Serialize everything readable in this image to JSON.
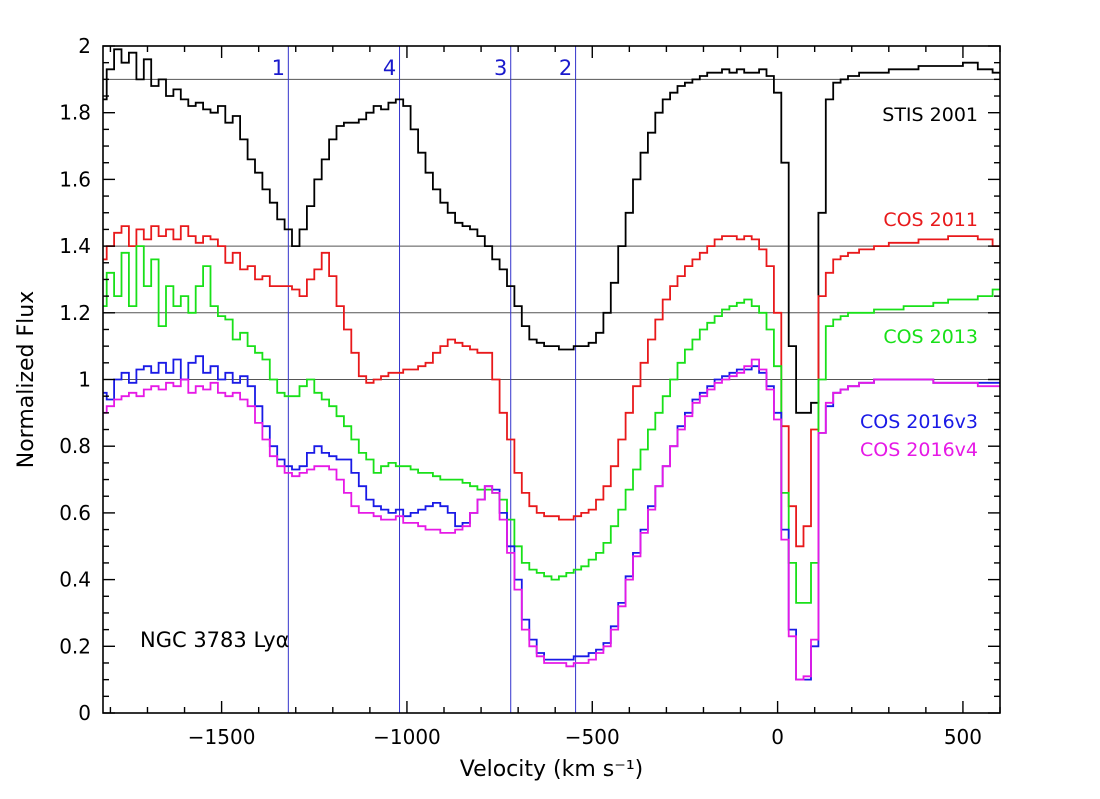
{
  "chart_data": {
    "type": "line",
    "object_label": "NGC 3783 Lyα",
    "xlabel": "Velocity (km s⁻¹)",
    "ylabel": "Normalized Flux",
    "xlim": [
      -1820,
      600
    ],
    "ylim": [
      0,
      2
    ],
    "x_ticks": [
      -1500,
      -1000,
      -500,
      0,
      500
    ],
    "x_tick_labels": [
      "−1500",
      "−1000",
      "−500",
      "0",
      "500"
    ],
    "y_ticks": [
      0,
      0.2,
      0.4,
      0.6,
      0.8,
      1,
      1.2,
      1.4,
      1.6,
      1.8,
      2
    ],
    "y_tick_labels": [
      "0",
      "0.2",
      "0.4",
      "0.6",
      "0.8",
      "1",
      "1.2",
      "1.4",
      "1.6",
      "1.8",
      "2"
    ],
    "grid": "none",
    "reference_lines": [
      1.0,
      1.2,
      1.4,
      1.9
    ],
    "component_lines": [
      {
        "label": "1",
        "x": -1320
      },
      {
        "label": "4",
        "x": -1020
      },
      {
        "label": "3",
        "x": -720
      },
      {
        "label": "2",
        "x": -545
      }
    ],
    "colors": {
      "axis": "#000000",
      "reference_line": "#555555",
      "component_line": "#3333cc",
      "component_label": "#1a1acc"
    },
    "series": [
      {
        "name": "STIS 2001",
        "color": "#000000",
        "x": [
          -1820,
          -1800,
          -1780,
          -1760,
          -1740,
          -1720,
          -1700,
          -1680,
          -1660,
          -1640,
          -1620,
          -1600,
          -1580,
          -1560,
          -1540,
          -1520,
          -1500,
          -1480,
          -1460,
          -1440,
          -1420,
          -1400,
          -1380,
          -1360,
          -1340,
          -1320,
          -1300,
          -1280,
          -1260,
          -1240,
          -1220,
          -1200,
          -1180,
          -1160,
          -1140,
          -1120,
          -1100,
          -1080,
          -1060,
          -1040,
          -1020,
          -1000,
          -980,
          -960,
          -940,
          -920,
          -900,
          -880,
          -860,
          -840,
          -820,
          -800,
          -780,
          -760,
          -740,
          -720,
          -700,
          -680,
          -660,
          -640,
          -620,
          -600,
          -580,
          -560,
          -540,
          -520,
          -500,
          -480,
          -460,
          -440,
          -420,
          -400,
          -380,
          -360,
          -340,
          -320,
          -300,
          -280,
          -260,
          -240,
          -220,
          -200,
          -180,
          -160,
          -140,
          -120,
          -100,
          -80,
          -60,
          -40,
          -20,
          0,
          20,
          40,
          60,
          80,
          100,
          120,
          140,
          160,
          180,
          200,
          240,
          280,
          320,
          360,
          400,
          440,
          480,
          520,
          560,
          600
        ],
        "values": [
          1.84,
          1.93,
          1.99,
          1.95,
          1.98,
          1.9,
          1.96,
          1.88,
          1.9,
          1.85,
          1.87,
          1.84,
          1.82,
          1.83,
          1.81,
          1.8,
          1.82,
          1.77,
          1.79,
          1.72,
          1.66,
          1.62,
          1.57,
          1.53,
          1.48,
          1.45,
          1.4,
          1.45,
          1.52,
          1.6,
          1.66,
          1.72,
          1.76,
          1.77,
          1.77,
          1.78,
          1.8,
          1.82,
          1.81,
          1.83,
          1.84,
          1.82,
          1.75,
          1.68,
          1.62,
          1.57,
          1.53,
          1.5,
          1.47,
          1.46,
          1.45,
          1.43,
          1.4,
          1.36,
          1.33,
          1.28,
          1.22,
          1.16,
          1.12,
          1.11,
          1.1,
          1.1,
          1.09,
          1.09,
          1.1,
          1.1,
          1.11,
          1.14,
          1.2,
          1.29,
          1.4,
          1.5,
          1.6,
          1.68,
          1.74,
          1.8,
          1.84,
          1.86,
          1.88,
          1.89,
          1.9,
          1.91,
          1.92,
          1.92,
          1.93,
          1.92,
          1.93,
          1.92,
          1.92,
          1.93,
          1.91,
          1.86,
          1.65,
          1.1,
          0.9,
          0.9,
          0.93,
          1.5,
          1.84,
          1.89,
          1.9,
          1.91,
          1.92,
          1.92,
          1.93,
          1.93,
          1.94,
          1.94,
          1.94,
          1.95,
          1.93,
          1.92
        ]
      },
      {
        "name": "COS 2011",
        "color": "#e8191b",
        "x": [
          -1820,
          -1800,
          -1780,
          -1760,
          -1740,
          -1720,
          -1700,
          -1680,
          -1660,
          -1640,
          -1620,
          -1600,
          -1580,
          -1560,
          -1540,
          -1520,
          -1500,
          -1480,
          -1460,
          -1440,
          -1420,
          -1400,
          -1380,
          -1360,
          -1340,
          -1320,
          -1300,
          -1280,
          -1260,
          -1240,
          -1220,
          -1200,
          -1180,
          -1160,
          -1140,
          -1120,
          -1100,
          -1080,
          -1060,
          -1040,
          -1020,
          -1000,
          -980,
          -960,
          -940,
          -920,
          -900,
          -880,
          -860,
          -840,
          -820,
          -800,
          -780,
          -760,
          -740,
          -720,
          -700,
          -680,
          -660,
          -640,
          -620,
          -600,
          -580,
          -560,
          -540,
          -520,
          -500,
          -480,
          -460,
          -440,
          -420,
          -400,
          -380,
          -360,
          -340,
          -320,
          -300,
          -280,
          -260,
          -240,
          -220,
          -200,
          -180,
          -160,
          -140,
          -120,
          -100,
          -80,
          -60,
          -40,
          -20,
          0,
          20,
          40,
          60,
          80,
          100,
          120,
          140,
          160,
          180,
          200,
          240,
          280,
          320,
          360,
          400,
          440,
          480,
          520,
          560,
          600
        ],
        "values": [
          1.36,
          1.4,
          1.44,
          1.46,
          1.4,
          1.45,
          1.42,
          1.46,
          1.43,
          1.45,
          1.42,
          1.46,
          1.43,
          1.41,
          1.43,
          1.42,
          1.4,
          1.35,
          1.38,
          1.33,
          1.34,
          1.3,
          1.31,
          1.28,
          1.28,
          1.28,
          1.27,
          1.25,
          1.3,
          1.33,
          1.38,
          1.31,
          1.22,
          1.15,
          1.08,
          1.01,
          0.99,
          1.0,
          1.01,
          1.02,
          1.02,
          1.03,
          1.03,
          1.04,
          1.05,
          1.08,
          1.1,
          1.12,
          1.11,
          1.1,
          1.09,
          1.08,
          1.08,
          1.0,
          0.9,
          0.82,
          0.72,
          0.66,
          0.62,
          0.6,
          0.59,
          0.59,
          0.58,
          0.58,
          0.59,
          0.6,
          0.61,
          0.64,
          0.68,
          0.74,
          0.82,
          0.9,
          0.98,
          1.05,
          1.12,
          1.18,
          1.24,
          1.28,
          1.31,
          1.34,
          1.36,
          1.38,
          1.4,
          1.42,
          1.43,
          1.43,
          1.42,
          1.43,
          1.42,
          1.39,
          1.34,
          1.2,
          0.86,
          0.62,
          0.5,
          0.56,
          0.85,
          1.25,
          1.32,
          1.36,
          1.37,
          1.38,
          1.39,
          1.4,
          1.41,
          1.41,
          1.42,
          1.42,
          1.43,
          1.43,
          1.42,
          1.4
        ]
      },
      {
        "name": "COS 2013",
        "color": "#19e019",
        "x": [
          -1820,
          -1800,
          -1780,
          -1760,
          -1740,
          -1720,
          -1700,
          -1680,
          -1660,
          -1640,
          -1620,
          -1600,
          -1580,
          -1560,
          -1540,
          -1520,
          -1500,
          -1480,
          -1460,
          -1440,
          -1420,
          -1400,
          -1380,
          -1360,
          -1340,
          -1320,
          -1300,
          -1280,
          -1260,
          -1240,
          -1220,
          -1200,
          -1180,
          -1160,
          -1140,
          -1120,
          -1100,
          -1080,
          -1060,
          -1040,
          -1020,
          -1000,
          -980,
          -960,
          -940,
          -920,
          -900,
          -880,
          -860,
          -840,
          -820,
          -800,
          -780,
          -760,
          -740,
          -720,
          -700,
          -680,
          -660,
          -640,
          -620,
          -600,
          -580,
          -560,
          -540,
          -520,
          -500,
          -480,
          -460,
          -440,
          -420,
          -400,
          -380,
          -360,
          -340,
          -320,
          -300,
          -280,
          -260,
          -240,
          -220,
          -200,
          -180,
          -160,
          -140,
          -120,
          -100,
          -80,
          -60,
          -40,
          -20,
          0,
          20,
          40,
          60,
          80,
          100,
          120,
          140,
          160,
          180,
          200,
          240,
          280,
          320,
          360,
          400,
          440,
          480,
          520,
          560,
          600
        ],
        "values": [
          1.22,
          1.32,
          1.25,
          1.38,
          1.22,
          1.4,
          1.28,
          1.36,
          1.16,
          1.28,
          1.22,
          1.25,
          1.2,
          1.28,
          1.34,
          1.22,
          1.19,
          1.18,
          1.12,
          1.14,
          1.1,
          1.08,
          1.06,
          1.0,
          0.96,
          0.95,
          0.95,
          0.98,
          1.0,
          0.96,
          0.94,
          0.92,
          0.89,
          0.86,
          0.82,
          0.78,
          0.76,
          0.72,
          0.74,
          0.75,
          0.74,
          0.74,
          0.73,
          0.72,
          0.72,
          0.71,
          0.7,
          0.7,
          0.7,
          0.69,
          0.68,
          0.67,
          0.67,
          0.66,
          0.64,
          0.58,
          0.5,
          0.45,
          0.43,
          0.42,
          0.41,
          0.4,
          0.41,
          0.42,
          0.43,
          0.44,
          0.46,
          0.48,
          0.51,
          0.56,
          0.61,
          0.67,
          0.73,
          0.79,
          0.85,
          0.9,
          0.95,
          1.0,
          1.05,
          1.09,
          1.12,
          1.15,
          1.17,
          1.19,
          1.21,
          1.22,
          1.23,
          1.24,
          1.22,
          1.2,
          1.15,
          1.04,
          0.66,
          0.45,
          0.33,
          0.33,
          0.45,
          1.0,
          1.16,
          1.18,
          1.19,
          1.2,
          1.2,
          1.21,
          1.21,
          1.22,
          1.22,
          1.23,
          1.24,
          1.24,
          1.25,
          1.27
        ]
      },
      {
        "name": "COS 2016v3",
        "color": "#1a1ae6",
        "x": [
          -1820,
          -1800,
          -1780,
          -1760,
          -1740,
          -1720,
          -1700,
          -1680,
          -1660,
          -1640,
          -1620,
          -1600,
          -1580,
          -1560,
          -1540,
          -1520,
          -1500,
          -1480,
          -1460,
          -1440,
          -1420,
          -1400,
          -1380,
          -1360,
          -1340,
          -1320,
          -1300,
          -1280,
          -1260,
          -1240,
          -1220,
          -1200,
          -1180,
          -1160,
          -1140,
          -1120,
          -1100,
          -1080,
          -1060,
          -1040,
          -1020,
          -1000,
          -980,
          -960,
          -940,
          -920,
          -900,
          -880,
          -860,
          -840,
          -820,
          -800,
          -780,
          -760,
          -740,
          -720,
          -700,
          -680,
          -660,
          -640,
          -620,
          -600,
          -580,
          -560,
          -540,
          -520,
          -500,
          -480,
          -460,
          -440,
          -420,
          -400,
          -380,
          -360,
          -340,
          -320,
          -300,
          -280,
          -260,
          -240,
          -220,
          -200,
          -180,
          -160,
          -140,
          -120,
          -100,
          -80,
          -60,
          -40,
          -20,
          0,
          20,
          40,
          60,
          80,
          100,
          120,
          140,
          160,
          180,
          200,
          240,
          280,
          320,
          360,
          400,
          440,
          480,
          520,
          560,
          600
        ],
        "values": [
          0.96,
          0.94,
          1.0,
          1.02,
          0.99,
          1.03,
          1.04,
          1.02,
          1.05,
          1.02,
          1.06,
          1.0,
          1.05,
          1.07,
          1.02,
          1.04,
          1.0,
          1.02,
          0.99,
          1.01,
          0.98,
          0.92,
          0.86,
          0.8,
          0.76,
          0.74,
          0.73,
          0.74,
          0.78,
          0.8,
          0.78,
          0.77,
          0.76,
          0.76,
          0.72,
          0.68,
          0.64,
          0.62,
          0.61,
          0.6,
          0.61,
          0.59,
          0.6,
          0.61,
          0.62,
          0.63,
          0.62,
          0.6,
          0.56,
          0.57,
          0.6,
          0.64,
          0.68,
          0.67,
          0.6,
          0.5,
          0.4,
          0.28,
          0.22,
          0.18,
          0.16,
          0.16,
          0.16,
          0.16,
          0.17,
          0.17,
          0.18,
          0.19,
          0.21,
          0.26,
          0.33,
          0.41,
          0.48,
          0.55,
          0.62,
          0.68,
          0.74,
          0.8,
          0.86,
          0.9,
          0.94,
          0.96,
          0.98,
          1.0,
          1.01,
          1.02,
          1.03,
          1.03,
          1.04,
          1.02,
          0.98,
          0.9,
          0.55,
          0.25,
          0.1,
          0.1,
          0.2,
          0.84,
          0.92,
          0.96,
          0.97,
          0.98,
          0.99,
          1.0,
          1.0,
          1.0,
          1.0,
          0.99,
          0.99,
          0.99,
          0.99,
          0.99
        ]
      },
      {
        "name": "COS 2016v4",
        "color": "#e619e6",
        "x": [
          -1820,
          -1800,
          -1780,
          -1760,
          -1740,
          -1720,
          -1700,
          -1680,
          -1660,
          -1640,
          -1620,
          -1600,
          -1580,
          -1560,
          -1540,
          -1520,
          -1500,
          -1480,
          -1460,
          -1440,
          -1420,
          -1400,
          -1380,
          -1360,
          -1340,
          -1320,
          -1300,
          -1280,
          -1260,
          -1240,
          -1220,
          -1200,
          -1180,
          -1160,
          -1140,
          -1120,
          -1100,
          -1080,
          -1060,
          -1040,
          -1020,
          -1000,
          -980,
          -960,
          -940,
          -920,
          -900,
          -880,
          -860,
          -840,
          -820,
          -800,
          -780,
          -760,
          -740,
          -720,
          -700,
          -680,
          -660,
          -640,
          -620,
          -600,
          -580,
          -560,
          -540,
          -520,
          -500,
          -480,
          -460,
          -440,
          -420,
          -400,
          -380,
          -360,
          -340,
          -320,
          -300,
          -280,
          -260,
          -240,
          -220,
          -200,
          -180,
          -160,
          -140,
          -120,
          -100,
          -80,
          -60,
          -40,
          -20,
          0,
          20,
          40,
          60,
          80,
          100,
          120,
          140,
          160,
          180,
          200,
          240,
          280,
          320,
          360,
          400,
          440,
          480,
          520,
          560,
          600
        ],
        "values": [
          0.9,
          0.92,
          0.94,
          0.95,
          0.96,
          0.95,
          0.97,
          0.98,
          0.97,
          0.99,
          0.98,
          1.0,
          0.96,
          0.98,
          0.97,
          0.99,
          0.96,
          0.95,
          0.96,
          0.94,
          0.92,
          0.87,
          0.82,
          0.77,
          0.74,
          0.72,
          0.71,
          0.72,
          0.73,
          0.74,
          0.74,
          0.73,
          0.7,
          0.66,
          0.62,
          0.6,
          0.6,
          0.59,
          0.58,
          0.58,
          0.59,
          0.57,
          0.57,
          0.56,
          0.55,
          0.55,
          0.54,
          0.54,
          0.55,
          0.56,
          0.6,
          0.64,
          0.68,
          0.66,
          0.58,
          0.48,
          0.37,
          0.25,
          0.2,
          0.17,
          0.15,
          0.15,
          0.15,
          0.14,
          0.15,
          0.15,
          0.16,
          0.18,
          0.2,
          0.25,
          0.32,
          0.4,
          0.47,
          0.54,
          0.61,
          0.68,
          0.74,
          0.8,
          0.85,
          0.89,
          0.93,
          0.95,
          0.97,
          0.99,
          1.0,
          1.01,
          1.02,
          1.04,
          1.06,
          1.03,
          0.97,
          0.88,
          0.52,
          0.23,
          0.1,
          0.11,
          0.22,
          0.84,
          0.93,
          0.96,
          0.97,
          0.98,
          0.99,
          1.0,
          1.0,
          1.0,
          1.0,
          0.99,
          0.99,
          0.99,
          0.98,
          0.98
        ]
      }
    ]
  }
}
